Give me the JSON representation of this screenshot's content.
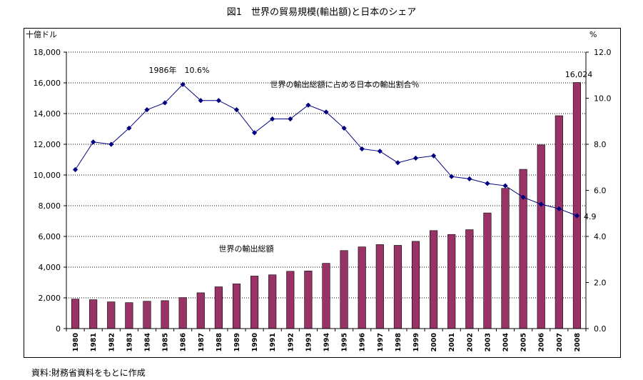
{
  "title": "図1　世界の貿易規模(輸出額)と日本のシェア",
  "source": "資料:財務省資料をもとに作成",
  "chart_data": {
    "type": "bar+line",
    "categories": [
      "1980",
      "1981",
      "1982",
      "1983",
      "1984",
      "1985",
      "1986",
      "1987",
      "1988",
      "1989",
      "1990",
      "1991",
      "1992",
      "1993",
      "1994",
      "1995",
      "1996",
      "1997",
      "1998",
      "1999",
      "2000",
      "2001",
      "2002",
      "2003",
      "2004",
      "2005",
      "2006",
      "2007",
      "2008"
    ],
    "series": [
      {
        "name": "世界の輸出総額",
        "type": "bar",
        "axis": "left",
        "color": "#993366",
        "values": [
          1920,
          1880,
          1740,
          1690,
          1780,
          1820,
          2020,
          2330,
          2720,
          2910,
          3420,
          3500,
          3730,
          3750,
          4250,
          5080,
          5320,
          5470,
          5420,
          5680,
          6380,
          6130,
          6440,
          7530,
          9130,
          10370,
          11960,
          13860,
          16024
        ]
      },
      {
        "name": "世界の輸出総額に占める日本の輸出割合％",
        "type": "line",
        "axis": "right",
        "color": "#000080",
        "values": [
          6.9,
          8.1,
          8.0,
          8.7,
          9.5,
          9.8,
          10.6,
          9.9,
          9.9,
          9.5,
          8.5,
          9.1,
          9.1,
          9.7,
          9.4,
          8.7,
          7.8,
          7.7,
          7.2,
          7.4,
          7.5,
          6.6,
          6.5,
          6.3,
          6.2,
          5.7,
          5.4,
          5.2,
          4.9
        ]
      }
    ],
    "left_axis": {
      "unit": "十億ドル",
      "ylim": [
        0,
        18000
      ],
      "ticks": [
        "0",
        "2,000",
        "4,000",
        "6,000",
        "8,000",
        "10,000",
        "12,000",
        "14,000",
        "16,000",
        "18,000"
      ]
    },
    "right_axis": {
      "unit": "%",
      "ylim": [
        0,
        12
      ],
      "ticks": [
        "0.0",
        "2.0",
        "4.0",
        "6.0",
        "8.0",
        "10.0",
        "12.0"
      ]
    },
    "annotations": {
      "peak_label": "1986年　10.6%",
      "last_share_label": "4.9",
      "last_value_label": "16,024",
      "line_label": "世界の輸出総額に占める日本の輸出割合％",
      "bar_label": "世界の輸出総額"
    }
  }
}
